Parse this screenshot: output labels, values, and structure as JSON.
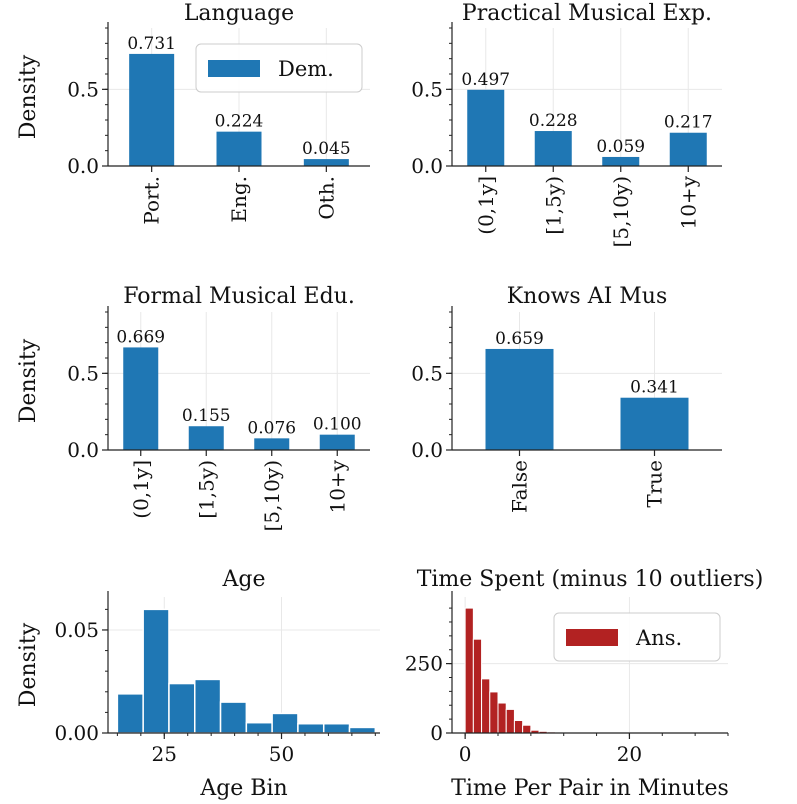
{
  "colors": {
    "dem": "#1f77b4",
    "ans": "#b22222",
    "grid": "#e8e8e8",
    "axis": "#222222"
  },
  "chart_data": [
    {
      "type": "bar",
      "title": "Language",
      "categories": [
        "Port.",
        "Eng.",
        "Oth."
      ],
      "values": [
        0.731,
        0.224,
        0.045
      ],
      "value_labels": [
        "0.731",
        "0.224",
        "0.045"
      ],
      "ylabel": "Density",
      "xlabel": "",
      "ylim": [
        0,
        0.9
      ],
      "yticks": [
        0.0,
        0.5
      ],
      "ytick_labels": [
        "0.0",
        "0.5"
      ],
      "legend": {
        "label": "Dem.",
        "position": "upper-right"
      }
    },
    {
      "type": "bar",
      "title": "Practical Musical Exp.",
      "categories": [
        "(0,1y]",
        "[1,5y)",
        "[5,10y)",
        "10+y"
      ],
      "values": [
        0.497,
        0.228,
        0.059,
        0.217
      ],
      "value_labels": [
        "0.497",
        "0.228",
        "0.059",
        "0.217"
      ],
      "ylabel": "",
      "xlabel": "",
      "ylim": [
        0,
        0.9
      ],
      "yticks": [
        0.0,
        0.5
      ],
      "ytick_labels": [
        "0.0",
        "0.5"
      ]
    },
    {
      "type": "bar",
      "title": "Formal Musical Edu.",
      "categories": [
        "(0,1y]",
        "[1,5y)",
        "[5,10y)",
        "10+y"
      ],
      "values": [
        0.669,
        0.155,
        0.076,
        0.1
      ],
      "value_labels": [
        "0.669",
        "0.155",
        "0.076",
        "0.100"
      ],
      "ylabel": "Density",
      "xlabel": "",
      "ylim": [
        0,
        0.9
      ],
      "yticks": [
        0.0,
        0.5
      ],
      "ytick_labels": [
        "0.0",
        "0.5"
      ]
    },
    {
      "type": "bar",
      "title": "Knows AI Mus",
      "categories": [
        "False",
        "True"
      ],
      "values": [
        0.659,
        0.341
      ],
      "value_labels": [
        "0.659",
        "0.341"
      ],
      "ylabel": "",
      "xlabel": "",
      "ylim": [
        0,
        0.9
      ],
      "yticks": [
        0.0,
        0.5
      ],
      "ytick_labels": [
        "0.0",
        "0.5"
      ]
    },
    {
      "type": "histogram",
      "title": "Age",
      "bin_edges": [
        15,
        20.5,
        26,
        31.5,
        37,
        42.5,
        48,
        53.5,
        59,
        64.5,
        70
      ],
      "values": [
        0.019,
        0.06,
        0.024,
        0.026,
        0.015,
        0.005,
        0.0095,
        0.0045,
        0.0045,
        0.0027
      ],
      "ylabel": "Density",
      "xlabel": "Age Bin",
      "xlim": [
        13,
        71
      ],
      "ylim": [
        0,
        0.066
      ],
      "xticks": [
        25,
        50
      ],
      "xtick_labels": [
        "25",
        "50"
      ],
      "yticks": [
        0.0,
        0.05
      ],
      "ytick_labels": [
        "0.00",
        "0.05"
      ]
    },
    {
      "type": "histogram",
      "title": "Time Spent (minus 10 outliers)",
      "bin_edges": [
        0,
        1,
        2,
        3,
        4,
        5,
        6,
        7,
        8,
        9,
        10,
        11,
        12,
        13,
        14,
        15,
        16,
        17,
        18,
        19,
        20,
        21,
        22,
        23,
        24,
        25,
        26,
        27,
        28,
        29,
        30,
        31
      ],
      "values": [
        450,
        338,
        195,
        148,
        108,
        85,
        45,
        28,
        10,
        6,
        4,
        2,
        2,
        1,
        1,
        1,
        0,
        1,
        0,
        0,
        1,
        0,
        0,
        0,
        0,
        0,
        0,
        0,
        0,
        0,
        1
      ],
      "ylabel": "",
      "xlabel": "Time Per Pair in Minutes",
      "xlim": [
        -1.6,
        32
      ],
      "ylim": [
        0,
        490
      ],
      "xticks": [
        0,
        20
      ],
      "xtick_labels": [
        "0",
        "20"
      ],
      "yticks": [
        0,
        250
      ],
      "ytick_labels": [
        "0",
        "250"
      ],
      "legend": {
        "label": "Ans.",
        "position": "upper-right"
      }
    }
  ]
}
